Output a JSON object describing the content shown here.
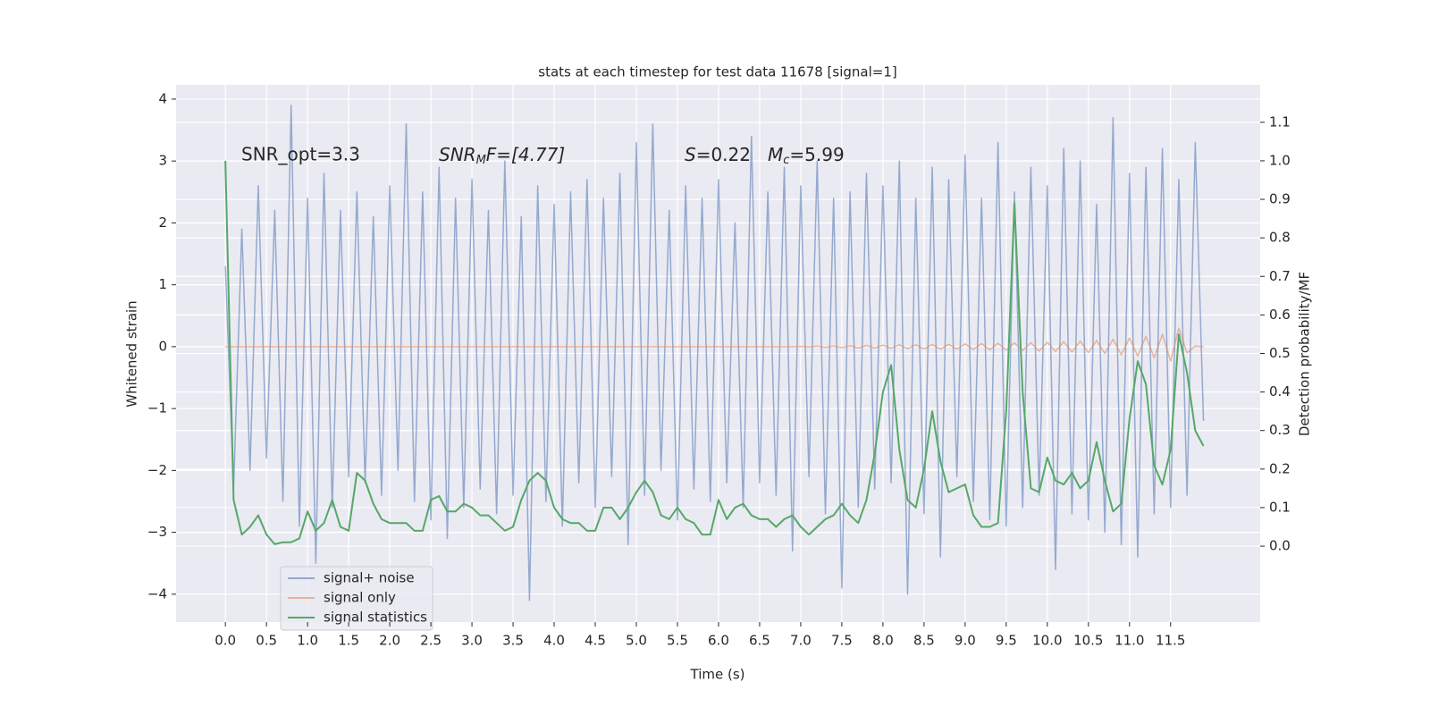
{
  "chart_data": {
    "type": "line",
    "title": "stats at each timestep for test data 11678 [signal=1]",
    "xlabel": "Time (s)",
    "ylabel": "Whitened strain",
    "y2label": "Detection probability/MF",
    "annotations": [
      "SNR_opt=3.3",
      [
        "SNR",
        "M",
        "F=[4.77]"
      ],
      [
        "S",
        "=0.22"
      ],
      [
        "M",
        "c",
        "=5.99"
      ]
    ],
    "xlim": [
      -0.6,
      12.59
    ],
    "ylim": [
      -4.45,
      4.23
    ],
    "y2lim": [
      -0.197,
      1.197
    ],
    "xticks": [
      {
        "value": 0,
        "label": "0.0"
      },
      0.5,
      {
        "value": 1,
        "label": "1.0"
      },
      1.5,
      {
        "value": 2,
        "label": "2.0"
      },
      2.5,
      {
        "value": 3,
        "label": "3.0"
      },
      3.5,
      {
        "value": 4,
        "label": "4.0"
      },
      4.5,
      {
        "value": 5,
        "label": "5.0"
      },
      5.5,
      {
        "value": 6,
        "label": "6.0"
      },
      6.5,
      {
        "value": 7,
        "label": "7.0"
      },
      7.5,
      {
        "value": 8,
        "label": "8.0"
      },
      8.5,
      {
        "value": 9,
        "label": "9.0"
      },
      9.5,
      {
        "value": 10,
        "label": "10.0"
      },
      10.5,
      {
        "value": 11,
        "label": "11.0"
      },
      11.5
    ],
    "yticks": [
      {
        "value": -4,
        "label": "−4"
      },
      {
        "value": -3,
        "label": "−3"
      },
      {
        "value": -2,
        "label": "−2"
      },
      {
        "value": -1,
        "label": "−1"
      },
      0,
      1,
      2,
      3,
      4
    ],
    "y2ticks": [
      {
        "value": 0,
        "label": "0.0"
      },
      0.1,
      0.2,
      0.3,
      0.4,
      0.5,
      0.6,
      0.7,
      0.8,
      0.9,
      {
        "value": 1,
        "label": "1.0"
      },
      1.1
    ],
    "grid": true,
    "legend": "lower left",
    "x": [
      0.0,
      0.1,
      0.2,
      0.3,
      0.4,
      0.5,
      0.6,
      0.7,
      0.8,
      0.9,
      1.0,
      1.1,
      1.2,
      1.3,
      1.4,
      1.5,
      1.6,
      1.7,
      1.8,
      1.9,
      2.0,
      2.1,
      2.2,
      2.3,
      2.4,
      2.5,
      2.6,
      2.7,
      2.8,
      2.9,
      3.0,
      3.1,
      3.2,
      3.3,
      3.4,
      3.5,
      3.6,
      3.7,
      3.8,
      3.9,
      4.0,
      4.1,
      4.2,
      4.3,
      4.4,
      4.5,
      4.6,
      4.7,
      4.8,
      4.9,
      5.0,
      5.1,
      5.2,
      5.3,
      5.4,
      5.5,
      5.6,
      5.7,
      5.8,
      5.9,
      6.0,
      6.1,
      6.2,
      6.3,
      6.4,
      6.5,
      6.6,
      6.7,
      6.8,
      6.9,
      7.0,
      7.1,
      7.2,
      7.3,
      7.4,
      7.5,
      7.6,
      7.7,
      7.8,
      7.9,
      8.0,
      8.1,
      8.2,
      8.3,
      8.4,
      8.5,
      8.6,
      8.7,
      8.8,
      8.9,
      9.0,
      9.1,
      9.2,
      9.3,
      9.4,
      9.5,
      9.6,
      9.7,
      9.8,
      9.9,
      10.0,
      10.1,
      10.2,
      10.3,
      10.4,
      10.5,
      10.6,
      10.7,
      10.8,
      10.9,
      11.0,
      11.1,
      11.2,
      11.3,
      11.4,
      11.5,
      11.6,
      11.7,
      11.8,
      11.9
    ],
    "series": [
      {
        "name": "signal+ noise",
        "color": "#4c72b0",
        "values": [
          1.3,
          -2.3,
          1.9,
          -2.0,
          2.6,
          -1.8,
          2.2,
          -2.5,
          3.9,
          -2.9,
          2.4,
          -3.5,
          2.8,
          -2.6,
          2.2,
          -2.1,
          2.5,
          -2.2,
          2.1,
          -2.4,
          2.6,
          -2.0,
          3.6,
          -2.5,
          2.5,
          -2.8,
          2.9,
          -3.1,
          2.4,
          -2.6,
          2.7,
          -2.3,
          2.2,
          -2.7,
          3.0,
          -2.4,
          2.1,
          -4.1,
          2.6,
          -2.5,
          2.3,
          -2.9,
          2.5,
          -2.2,
          2.7,
          -2.6,
          2.4,
          -2.1,
          2.8,
          -3.2,
          3.3,
          -2.4,
          3.6,
          -2.0,
          2.2,
          -2.8,
          2.6,
          -2.3,
          2.4,
          -2.5,
          2.7,
          -2.2,
          2.0,
          -2.6,
          3.4,
          -2.2,
          2.5,
          -2.4,
          2.9,
          -3.3,
          2.6,
          -2.1,
          3.0,
          -2.7,
          2.4,
          -3.9,
          2.5,
          -2.6,
          2.8,
          -2.3,
          2.6,
          -2.2,
          3.0,
          -4.0,
          2.4,
          -2.7,
          2.9,
          -3.4,
          2.7,
          -2.1,
          3.1,
          -2.5,
          2.4,
          -2.8,
          3.3,
          -2.9,
          2.5,
          -2.6,
          2.9,
          -2.4,
          2.6,
          -3.6,
          3.2,
          -2.7,
          3.0,
          -2.8,
          2.3,
          -3.0,
          3.7,
          -3.2,
          2.8,
          -3.4,
          2.9,
          -2.7,
          3.2,
          -2.6,
          2.7,
          -2.4,
          3.3,
          -1.2
        ]
      },
      {
        "name": "signal only",
        "color": "#dd8452",
        "values": [
          0,
          0,
          0,
          0,
          0,
          0,
          0,
          0,
          0,
          0,
          0,
          0,
          0,
          0,
          0,
          0,
          0,
          0,
          0,
          0,
          0,
          0,
          0,
          0,
          0,
          0,
          0,
          0,
          0,
          0,
          0,
          0,
          0,
          0,
          0,
          0,
          0,
          0,
          0,
          0,
          0,
          0,
          0,
          0,
          0,
          0,
          0,
          0,
          0,
          0,
          0,
          0,
          0,
          0,
          0,
          0,
          0,
          0,
          0,
          0,
          0,
          0,
          0,
          0,
          0,
          0,
          0,
          0,
          0,
          0,
          0.005,
          -0.005,
          0.01,
          -0.01,
          0.01,
          -0.015,
          0.015,
          -0.02,
          0.02,
          -0.02,
          0.025,
          -0.025,
          0.03,
          -0.03,
          0.03,
          -0.035,
          0.035,
          -0.04,
          0.04,
          -0.04,
          0.045,
          -0.045,
          0.05,
          -0.05,
          0.055,
          -0.055,
          0.06,
          -0.06,
          0.065,
          -0.07,
          0.07,
          -0.075,
          0.08,
          -0.085,
          0.09,
          -0.095,
          0.1,
          -0.11,
          0.12,
          -0.13,
          0.14,
          -0.15,
          0.17,
          -0.18,
          0.2,
          -0.23,
          0.3,
          -0.1,
          0.01,
          0
        ]
      },
      {
        "name": "signal statistics",
        "color": "#55a868",
        "axis": "y2",
        "values": [
          1.0,
          0.12,
          0.03,
          0.05,
          0.08,
          0.03,
          0.005,
          0.01,
          0.01,
          0.02,
          0.09,
          0.04,
          0.06,
          0.12,
          0.05,
          0.04,
          0.19,
          0.17,
          0.11,
          0.07,
          0.06,
          0.06,
          0.06,
          0.04,
          0.04,
          0.12,
          0.13,
          0.09,
          0.09,
          0.11,
          0.1,
          0.08,
          0.08,
          0.06,
          0.04,
          0.05,
          0.12,
          0.17,
          0.19,
          0.17,
          0.1,
          0.07,
          0.06,
          0.06,
          0.04,
          0.04,
          0.1,
          0.1,
          0.07,
          0.1,
          0.14,
          0.17,
          0.14,
          0.08,
          0.07,
          0.1,
          0.07,
          0.06,
          0.03,
          0.03,
          0.12,
          0.07,
          0.1,
          0.11,
          0.08,
          0.07,
          0.07,
          0.05,
          0.07,
          0.08,
          0.05,
          0.03,
          0.05,
          0.07,
          0.08,
          0.11,
          0.08,
          0.06,
          0.12,
          0.24,
          0.4,
          0.47,
          0.25,
          0.12,
          0.1,
          0.2,
          0.35,
          0.22,
          0.14,
          0.15,
          0.16,
          0.08,
          0.05,
          0.05,
          0.06,
          0.35,
          0.89,
          0.4,
          0.15,
          0.14,
          0.23,
          0.17,
          0.16,
          0.19,
          0.15,
          0.17,
          0.27,
          0.17,
          0.09,
          0.11,
          0.33,
          0.48,
          0.42,
          0.21,
          0.16,
          0.25,
          0.55,
          0.45,
          0.3,
          0.26
        ]
      }
    ]
  }
}
